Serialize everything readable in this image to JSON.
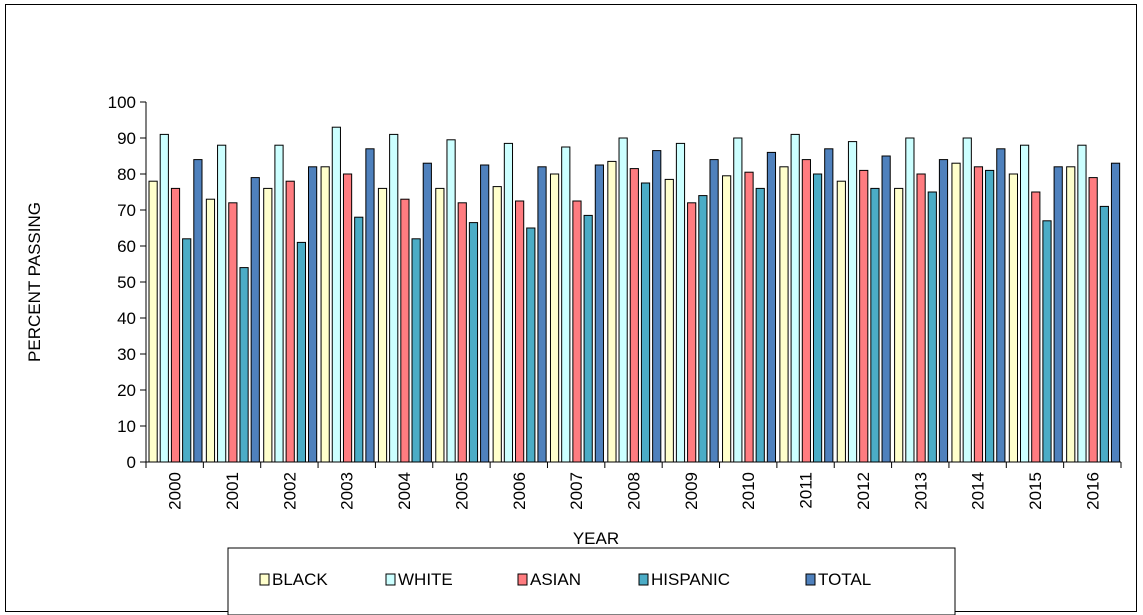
{
  "chart_data": {
    "type": "bar",
    "title": "",
    "xlabel": "YEAR",
    "ylabel": "PERCENT PASSING",
    "ylim": [
      0,
      100
    ],
    "yticks": [
      0,
      10,
      20,
      30,
      40,
      50,
      60,
      70,
      80,
      90,
      100
    ],
    "grid": false,
    "legend_position": "bottom",
    "categories": [
      "2000",
      "2001",
      "2002",
      "2003",
      "2004",
      "2005",
      "2006",
      "2007",
      "2008",
      "2009",
      "2010",
      "2011",
      "2012",
      "2013",
      "2014",
      "2015",
      "2016"
    ],
    "series": [
      {
        "name": "BLACK",
        "color": "#ffffcc",
        "values": [
          78,
          73,
          76,
          82,
          76,
          76,
          76.5,
          80,
          83.5,
          78.5,
          79.5,
          82,
          78,
          76,
          83,
          80,
          82
        ]
      },
      {
        "name": "WHITE",
        "color": "#ccffff",
        "values": [
          91,
          88,
          88,
          93,
          91,
          89.5,
          88.5,
          87.5,
          90,
          88.5,
          90,
          91,
          89,
          90,
          90,
          88,
          88
        ]
      },
      {
        "name": "ASIAN",
        "color": "#ff7c80",
        "values": [
          76,
          72,
          78,
          80,
          73,
          72,
          72.5,
          72.5,
          81.5,
          72,
          80.5,
          84,
          81,
          80,
          82,
          75,
          79
        ]
      },
      {
        "name": "HISPANIC",
        "color": "#4bacc6",
        "values": [
          62,
          54,
          61,
          68,
          62,
          66.5,
          65,
          68.5,
          77.5,
          74,
          76,
          80,
          76,
          75,
          81,
          67,
          71
        ]
      },
      {
        "name": "TOTAL",
        "color": "#4f81bd",
        "values": [
          84,
          79,
          82,
          87,
          83,
          82.5,
          82,
          82.5,
          86.5,
          84,
          86,
          87,
          85,
          84,
          87,
          82,
          83
        ]
      }
    ]
  }
}
